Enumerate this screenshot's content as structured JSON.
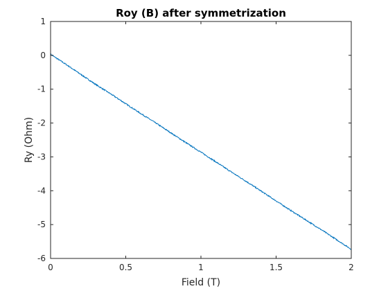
{
  "chart_data": {
    "type": "line",
    "title": "Roy (B) after symmetrization",
    "xlabel": "Field (T)",
    "ylabel": "Ry (Ohm)",
    "xlim": [
      0,
      2
    ],
    "ylim": [
      -6,
      1
    ],
    "xticks": [
      0,
      0.5,
      1,
      1.5,
      2
    ],
    "xtick_labels": [
      "0",
      "0.5",
      "1",
      "1.5",
      "2"
    ],
    "yticks": [
      1,
      0,
      -1,
      -2,
      -3,
      -4,
      -5,
      -6
    ],
    "ytick_labels": [
      "1",
      "0",
      "-1",
      "-2",
      "-3",
      "-4",
      "-5",
      "-6"
    ],
    "grid": false,
    "box": true,
    "series": [
      {
        "color": "#0072bd",
        "x": [
          0,
          0.1,
          0.2,
          0.3,
          0.4,
          0.5,
          0.6,
          0.7,
          0.8,
          0.9,
          1.0,
          1.1,
          1.2,
          1.3,
          1.4,
          1.5,
          1.6,
          1.7,
          1.8,
          1.9,
          2.0
        ],
        "values": [
          0.03,
          -0.26,
          -0.56,
          -0.86,
          -1.14,
          -1.43,
          -1.72,
          -2.0,
          -2.29,
          -2.58,
          -2.86,
          -3.15,
          -3.44,
          -3.72,
          -4.01,
          -4.3,
          -4.59,
          -4.87,
          -5.15,
          -5.44,
          -5.73
        ]
      }
    ]
  }
}
